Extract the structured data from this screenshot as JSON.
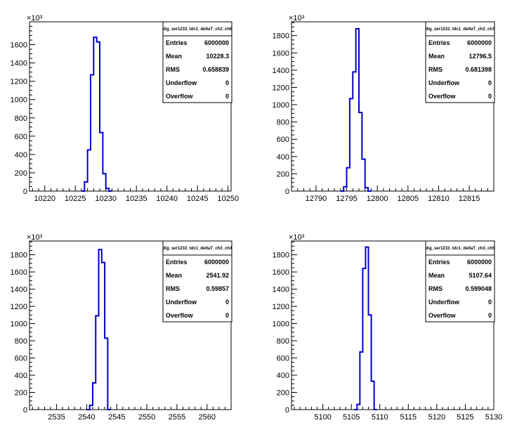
{
  "chart_data": [
    {
      "type": "histogram",
      "stats": {
        "title": "dig_ser1233_tdc1_deltaT_ch2_ch6",
        "rows": [
          {
            "label": "Entries",
            "value": "6000000"
          },
          {
            "label": "Mean",
            "value": "10228.3"
          },
          {
            "label": "RMS",
            "value": "0.658839"
          },
          {
            "label": "Underflow",
            "value": "0"
          },
          {
            "label": "Overflow",
            "value": "0"
          }
        ]
      },
      "y_multiplier": "×10³",
      "xlim": [
        10217.5,
        10250.5
      ],
      "ylim": [
        0,
        1850
      ],
      "x_ticks": [
        10220,
        10225,
        10230,
        10235,
        10240,
        10245,
        10250
      ],
      "y_ticks": [
        0,
        200,
        400,
        600,
        800,
        1000,
        1200,
        1400,
        1600
      ],
      "bin_width": 0.5,
      "bins": [
        {
          "x": 10226.0,
          "y": 0
        },
        {
          "x": 10226.5,
          "y": 100
        },
        {
          "x": 10227.0,
          "y": 450
        },
        {
          "x": 10227.5,
          "y": 1270
        },
        {
          "x": 10228.0,
          "y": 1680
        },
        {
          "x": 10228.5,
          "y": 1630
        },
        {
          "x": 10229.0,
          "y": 640
        },
        {
          "x": 10229.5,
          "y": 190
        },
        {
          "x": 10230.0,
          "y": 30
        },
        {
          "x": 10230.5,
          "y": 0
        }
      ]
    },
    {
      "type": "histogram",
      "stats": {
        "title": "dig_ser1233_tdc1_deltaT_ch2_ch7",
        "rows": [
          {
            "label": "Entries",
            "value": "6000000"
          },
          {
            "label": "Mean",
            "value": "12796.5"
          },
          {
            "label": "RMS",
            "value": "0.681398"
          },
          {
            "label": "Underflow",
            "value": "0"
          },
          {
            "label": "Overflow",
            "value": "0"
          }
        ]
      },
      "y_multiplier": "×10³",
      "xlim": [
        12786.0,
        12819.0
      ],
      "ylim": [
        0,
        1960
      ],
      "x_ticks": [
        12790,
        12795,
        12800,
        12805,
        12810,
        12815
      ],
      "y_ticks": [
        0,
        200,
        400,
        600,
        800,
        1000,
        1200,
        1400,
        1600,
        1800
      ],
      "bin_width": 0.5,
      "bins": [
        {
          "x": 12794.0,
          "y": 0
        },
        {
          "x": 12794.5,
          "y": 50
        },
        {
          "x": 12795.0,
          "y": 270
        },
        {
          "x": 12795.5,
          "y": 1070
        },
        {
          "x": 12796.0,
          "y": 1380
        },
        {
          "x": 12796.5,
          "y": 1880
        },
        {
          "x": 12797.0,
          "y": 910
        },
        {
          "x": 12797.5,
          "y": 370
        },
        {
          "x": 12798.0,
          "y": 40
        },
        {
          "x": 12798.5,
          "y": 0
        }
      ]
    },
    {
      "type": "histogram",
      "stats": {
        "title": "dig_ser1233_tdc1_deltaT_ch3_ch4",
        "rows": [
          {
            "label": "Entries",
            "value": "6000000"
          },
          {
            "label": "Mean",
            "value": "2541.92"
          },
          {
            "label": "RMS",
            "value": "0.59857"
          },
          {
            "label": "Underflow",
            "value": "0"
          },
          {
            "label": "Overflow",
            "value": "0"
          }
        ]
      },
      "y_multiplier": "×10³",
      "xlim": [
        2530.5,
        2564.0
      ],
      "ylim": [
        0,
        1960
      ],
      "x_ticks": [
        2535,
        2540,
        2545,
        2550,
        2555,
        2560
      ],
      "y_ticks": [
        0,
        200,
        400,
        600,
        800,
        1000,
        1200,
        1400,
        1600,
        1800
      ],
      "bin_width": 0.5,
      "bins": [
        {
          "x": 2540.0,
          "y": 0
        },
        {
          "x": 2540.5,
          "y": 50
        },
        {
          "x": 2541.0,
          "y": 310
        },
        {
          "x": 2541.5,
          "y": 1090
        },
        {
          "x": 2542.0,
          "y": 1860
        },
        {
          "x": 2542.5,
          "y": 1710
        },
        {
          "x": 2543.0,
          "y": 830
        },
        {
          "x": 2543.5,
          "y": 0
        }
      ]
    },
    {
      "type": "histogram",
      "stats": {
        "title": "dig_ser1233_tdc1_deltaT_ch3_ch5",
        "rows": [
          {
            "label": "Entries",
            "value": "6000000"
          },
          {
            "label": "Mean",
            "value": "5107.64"
          },
          {
            "label": "RMS",
            "value": "0.599048"
          },
          {
            "label": "Underflow",
            "value": "0"
          },
          {
            "label": "Overflow",
            "value": "0"
          }
        ]
      },
      "y_multiplier": "×10³",
      "xlim": [
        5094.5,
        5130.0
      ],
      "ylim": [
        0,
        1960
      ],
      "x_ticks": [
        5100,
        5105,
        5110,
        5115,
        5120,
        5125,
        5130
      ],
      "y_ticks": [
        0,
        200,
        400,
        600,
        800,
        1000,
        1200,
        1400,
        1600,
        1800
      ],
      "bin_width": 0.5,
      "bins": [
        {
          "x": 5105.5,
          "y": 0
        },
        {
          "x": 5106.0,
          "y": 60
        },
        {
          "x": 5106.5,
          "y": 670
        },
        {
          "x": 5107.0,
          "y": 1640
        },
        {
          "x": 5107.5,
          "y": 1890
        },
        {
          "x": 5108.0,
          "y": 1100
        },
        {
          "x": 5108.5,
          "y": 330
        },
        {
          "x": 5109.0,
          "y": 0
        }
      ]
    }
  ],
  "colors": {
    "histogram_line": "#0000cc",
    "axis": "#000000"
  }
}
